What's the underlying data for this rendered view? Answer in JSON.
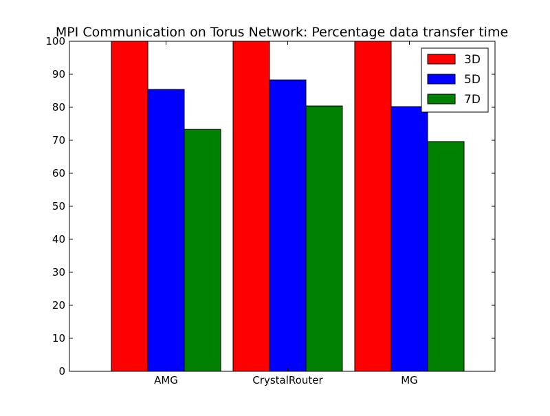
{
  "chart_data": {
    "type": "bar",
    "title": "MPI Communication on Torus Network: Percentage data transfer time",
    "xlabel": "",
    "ylabel": "",
    "categories": [
      "AMG",
      "CrystalRouter",
      "MG"
    ],
    "series": [
      {
        "name": "3D",
        "color": "#ff0000",
        "values": [
          100,
          100,
          100
        ]
      },
      {
        "name": "5D",
        "color": "#0000ff",
        "values": [
          85.4,
          88.3,
          80.2
        ]
      },
      {
        "name": "7D",
        "color": "#008000",
        "values": [
          73.3,
          80.4,
          69.6
        ]
      }
    ],
    "ylim": [
      0,
      100
    ],
    "yticks": [
      0,
      10,
      20,
      30,
      40,
      50,
      60,
      70,
      80,
      90,
      100
    ],
    "grid": false,
    "legend_position": "top-right"
  }
}
